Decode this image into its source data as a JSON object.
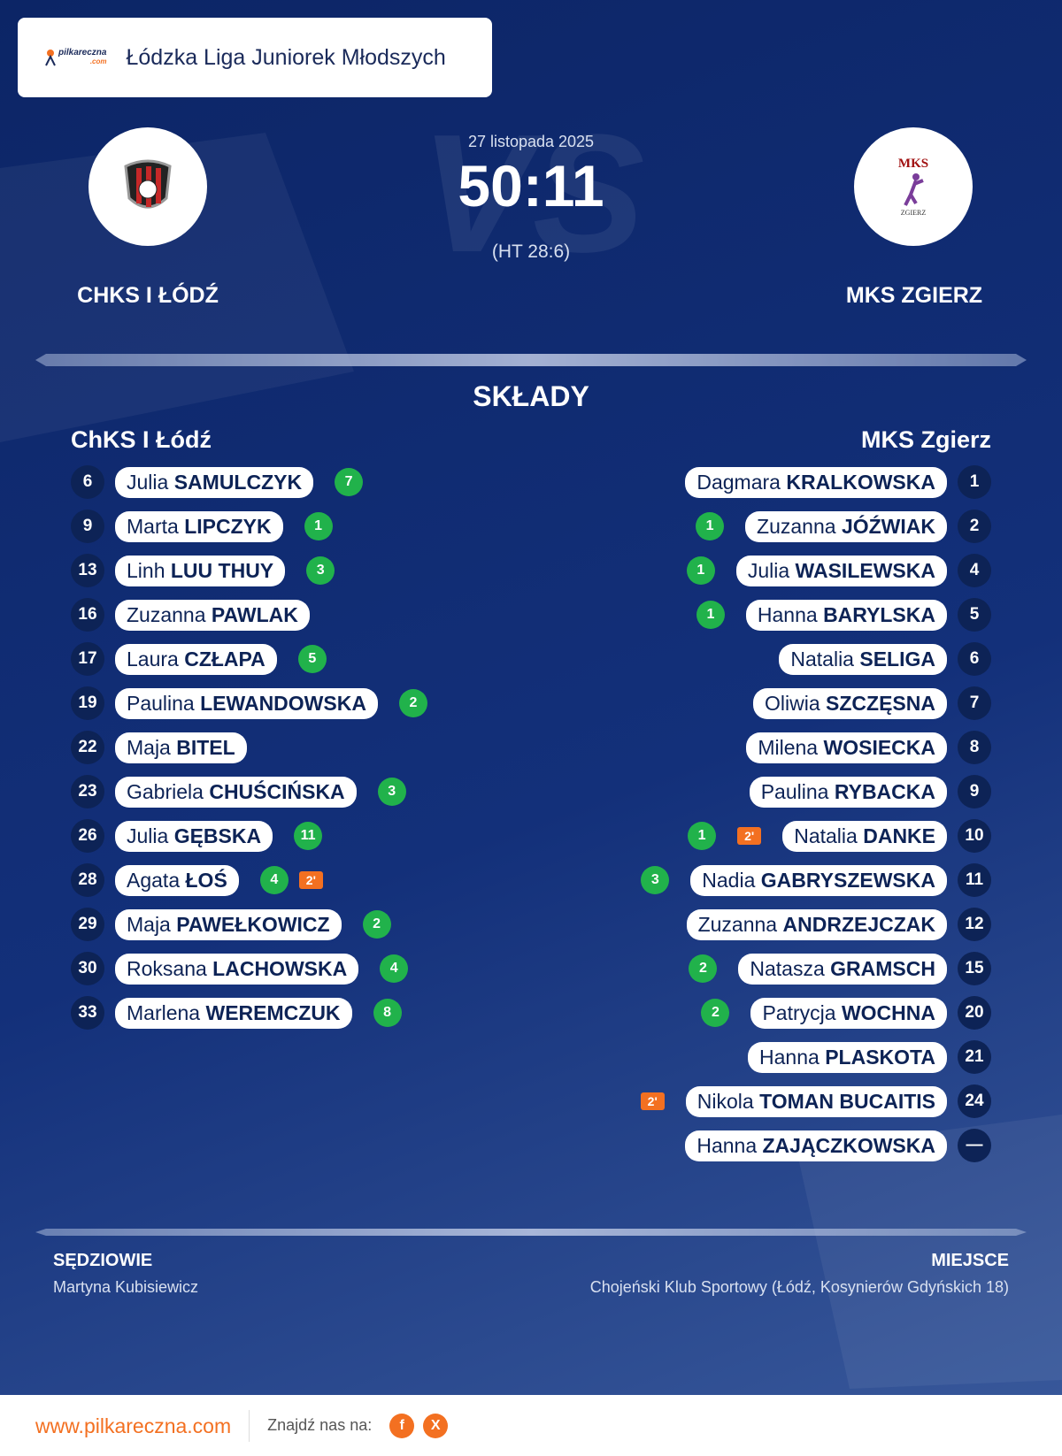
{
  "header": {
    "logo_text": [
      "pilkareczna",
      ".com"
    ],
    "league": "Łódzka Liga Juniorek Młodszych"
  },
  "match": {
    "watermark": "VS",
    "date": "27 listopada 2025",
    "score": "50:11",
    "halftime": "(HT 28:6)"
  },
  "home": {
    "name": "CHKS I ŁÓDŹ",
    "label": "ChKS I Łódź",
    "players": [
      {
        "number": 6,
        "first": "Julia",
        "last": "SAMULCZYK",
        "goals": 7
      },
      {
        "number": 9,
        "first": "Marta",
        "last": "LIPCZYK",
        "goals": 1
      },
      {
        "number": 13,
        "first": "Linh",
        "last": "LUU THUY",
        "goals": 3
      },
      {
        "number": 16,
        "first": "Zuzanna",
        "last": "PAWLAK"
      },
      {
        "number": 17,
        "first": "Laura",
        "last": "CZŁAPA",
        "goals": 5
      },
      {
        "number": 19,
        "first": "Paulina",
        "last": "LEWANDOWSKA",
        "goals": 2
      },
      {
        "number": 22,
        "first": "Maja",
        "last": "BITEL"
      },
      {
        "number": 23,
        "first": "Gabriela",
        "last": "CHUŚCIŃSKA",
        "goals": 3
      },
      {
        "number": 26,
        "first": "Julia",
        "last": "GĘBSKA",
        "goals": 11
      },
      {
        "number": 28,
        "first": "Agata",
        "last": "ŁOŚ",
        "goals": 4,
        "penalty": "2'"
      },
      {
        "number": 29,
        "first": "Maja",
        "last": "PAWEŁKOWICZ",
        "goals": 2
      },
      {
        "number": 30,
        "first": "Roksana",
        "last": "LACHOWSKA",
        "goals": 4
      },
      {
        "number": 33,
        "first": "Marlena",
        "last": "WEREMCZUK",
        "goals": 8
      }
    ]
  },
  "away": {
    "name": "MKS ZGIERZ",
    "label": "MKS Zgierz",
    "logo_text": [
      "MKS",
      "ZGIERZ"
    ],
    "players": [
      {
        "number": 1,
        "first": "Dagmara",
        "last": "KRALKOWSKA"
      },
      {
        "number": 2,
        "first": "Zuzanna",
        "last": "JÓŹWIAK",
        "goals": 1
      },
      {
        "number": 4,
        "first": "Julia",
        "last": "WASILEWSKA",
        "goals": 1
      },
      {
        "number": 5,
        "first": "Hanna",
        "last": "BARYLSKA",
        "goals": 1
      },
      {
        "number": 6,
        "first": "Natalia",
        "last": "SELIGA"
      },
      {
        "number": 7,
        "first": "Oliwia",
        "last": "SZCZĘSNA"
      },
      {
        "number": 8,
        "first": "Milena",
        "last": "WOSIECKA"
      },
      {
        "number": 9,
        "first": "Paulina",
        "last": "RYBACKA"
      },
      {
        "number": 10,
        "first": "Natalia",
        "last": "DANKE",
        "goals": 1,
        "penalty": "2'"
      },
      {
        "number": 11,
        "first": "Nadia",
        "last": "GABRYSZEWSKA",
        "goals": 3
      },
      {
        "number": 12,
        "first": "Zuzanna",
        "last": "ANDRZEJCZAK"
      },
      {
        "number": 15,
        "first": "Natasza",
        "last": "GRAMSCH",
        "goals": 2
      },
      {
        "number": 20,
        "first": "Patrycja",
        "last": "WOCHNA",
        "goals": 2
      },
      {
        "number": 21,
        "first": "Hanna",
        "last": "PLASKOTA"
      },
      {
        "number": 24,
        "first": "Nikola",
        "last": "TOMAN BUCAITIS",
        "penalty": "2'"
      },
      {
        "number": "—",
        "first": "Hanna",
        "last": "ZAJĄCZKOWSKA"
      }
    ]
  },
  "section_title": "SKŁADY",
  "officials": {
    "label": "SĘDZIOWIE",
    "names": "Martyna Kubisiewicz"
  },
  "venue": {
    "label": "MIEJSCE",
    "text": "Chojeński Klub Sportowy (Łódź, Kosynierów Gdyńskich 18)"
  },
  "footer": {
    "website": "www.pilkareczna.com",
    "social_label": "Znajdź nas na:",
    "social": [
      "f",
      "X"
    ]
  }
}
